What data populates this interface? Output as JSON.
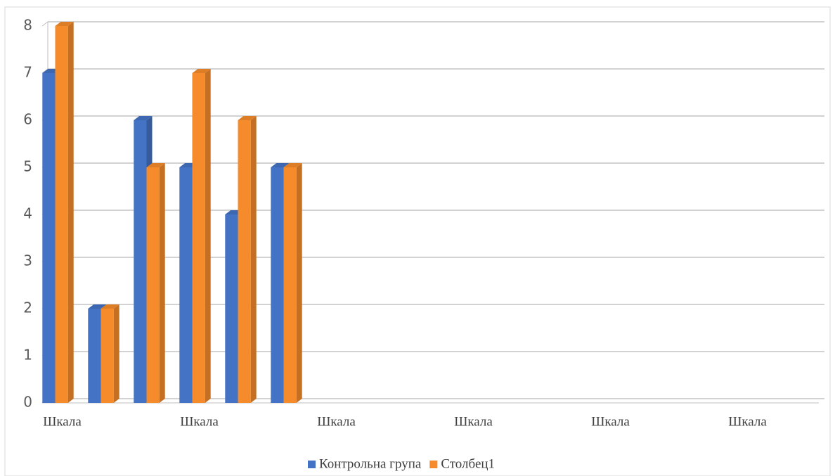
{
  "chart_data": {
    "type": "bar3d",
    "categories": [
      "Шкала",
      null,
      null,
      "Шкала",
      null,
      null,
      "Шкала",
      null,
      null,
      "Шкала",
      null,
      null,
      "Шкала",
      null,
      null,
      "Шкала",
      null
    ],
    "series": [
      {
        "name": "Контрольна група",
        "color": "#4472c4",
        "values": [
          7,
          2,
          6,
          5,
          4,
          5,
          null,
          null,
          null,
          null,
          null,
          null,
          null,
          null,
          null,
          null,
          null
        ]
      },
      {
        "name": "Столбец1",
        "color": "#f58b2a",
        "values": [
          8,
          2,
          5,
          7,
          6,
          5,
          null,
          null,
          null,
          null,
          null,
          null,
          null,
          null,
          null,
          null,
          null
        ]
      }
    ],
    "ylim": [
      0,
      8
    ],
    "yticks": [
      0,
      1,
      2,
      3,
      4,
      5,
      6,
      7,
      8
    ],
    "grid": true,
    "legend": "bottom"
  }
}
